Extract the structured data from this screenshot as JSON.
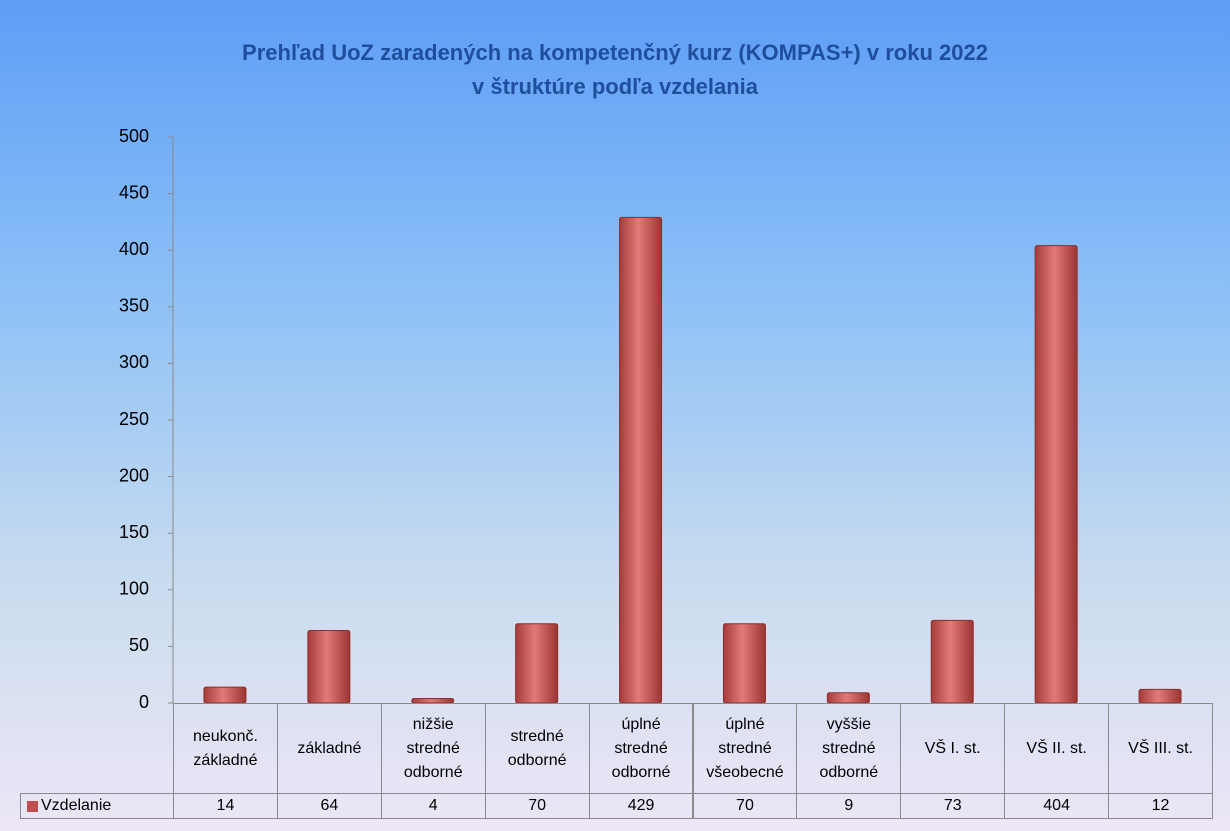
{
  "chart_data": {
    "type": "bar",
    "title": [
      "Prehľad UoZ zaradených na kompetenčný kurz (KOMPAS+) v roku 2022",
      "v štruktúre podľa vzdelania"
    ],
    "categories": [
      "neukonč. základné",
      "základné",
      "nižšie stredné odborné",
      "stredné odborné",
      "úplné stredné odborné",
      "úplné stredné všeobecné",
      "vyššie stredné odborné",
      "VŠ I. st.",
      "VŠ II. st.",
      "VŠ III. st."
    ],
    "series": [
      {
        "name": "Vzdelanie",
        "color": "#c0504d",
        "values": [
          14,
          64,
          4,
          70,
          429,
          70,
          9,
          73,
          404,
          12
        ]
      }
    ],
    "ylim": [
      0,
      500
    ],
    "yticks": [
      0,
      50,
      100,
      150,
      200,
      250,
      300,
      350,
      400,
      450,
      500
    ],
    "grid": false
  }
}
